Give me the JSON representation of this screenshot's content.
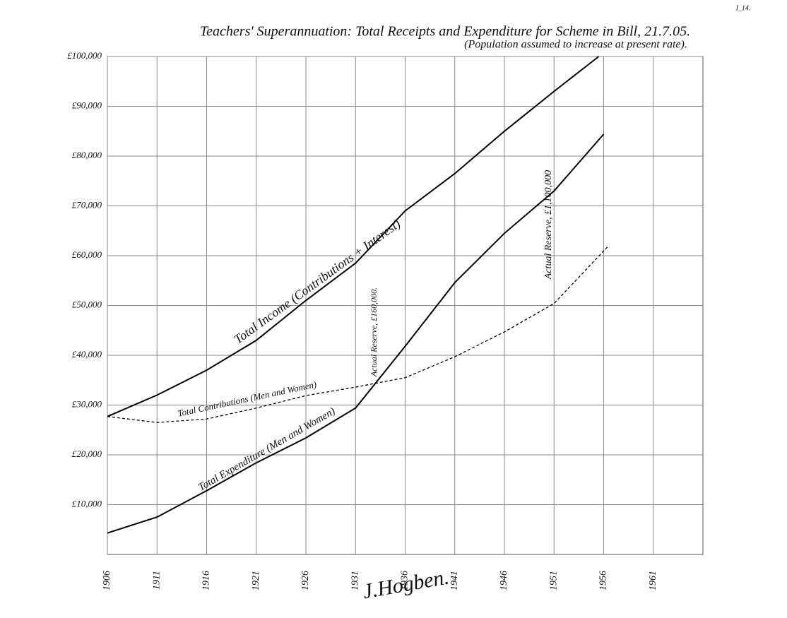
{
  "page_label": "I_14.",
  "chart_data": {
    "type": "line",
    "title": "Teachers' Superannuation: Total Receipts and Expenditure for Scheme in Bill, 21.7.05.",
    "subtitle": "(Population assumed to increase at present rate).",
    "xlim": [
      1906,
      1966
    ],
    "xticks": [
      1906,
      1911,
      1916,
      1921,
      1926,
      1931,
      1936,
      1941,
      1946,
      1951,
      1956,
      1961
    ],
    "ylim": [
      0,
      100000
    ],
    "yticks": [
      {
        "value": 10000,
        "label": "£10,000"
      },
      {
        "value": 20000,
        "label": "£20,000"
      },
      {
        "value": 30000,
        "label": "£30,000"
      },
      {
        "value": 40000,
        "label": "£40,000"
      },
      {
        "value": 50000,
        "label": "£50,000"
      },
      {
        "value": 60000,
        "label": "£60,000"
      },
      {
        "value": 70000,
        "label": "£70,000"
      },
      {
        "value": 80000,
        "label": "£80,000"
      },
      {
        "value": 90000,
        "label": "£90,000"
      },
      {
        "value": 100000,
        "label": "£100,000"
      }
    ],
    "grid": true,
    "series": [
      {
        "name": "Total Income (Contributions + Interest)",
        "color": "#000000",
        "style": "solid",
        "x": [
          1906,
          1911,
          1916,
          1921,
          1926,
          1931,
          1936,
          1941,
          1946,
          1951,
          1955.5
        ],
        "values": [
          27700,
          32000,
          37000,
          43000,
          51000,
          58500,
          69000,
          76500,
          85000,
          93000,
          100000
        ]
      },
      {
        "name": "Total Contributions (Men and Women)",
        "color": "#000000",
        "style": "dashed",
        "x": [
          1906,
          1911,
          1916,
          1921,
          1926,
          1931,
          1936,
          1941,
          1946,
          1951,
          1956.5
        ],
        "values": [
          27700,
          26500,
          27200,
          29400,
          31900,
          33600,
          35500,
          39700,
          44700,
          50400,
          62000
        ]
      },
      {
        "name": "Total Expenditure (Men and Women)",
        "color": "#000000",
        "style": "solid",
        "x": [
          1906,
          1911,
          1916,
          1921,
          1926,
          1931,
          1936,
          1941,
          1946,
          1951,
          1956
        ],
        "values": [
          4300,
          7500,
          12800,
          18400,
          23400,
          29400,
          41800,
          54600,
          64500,
          73000,
          84400
        ]
      }
    ],
    "annotations": [
      "Actual Reserve, £160,000.",
      "Actual Reserve, £1,100,000",
      "J.Hogben."
    ]
  }
}
